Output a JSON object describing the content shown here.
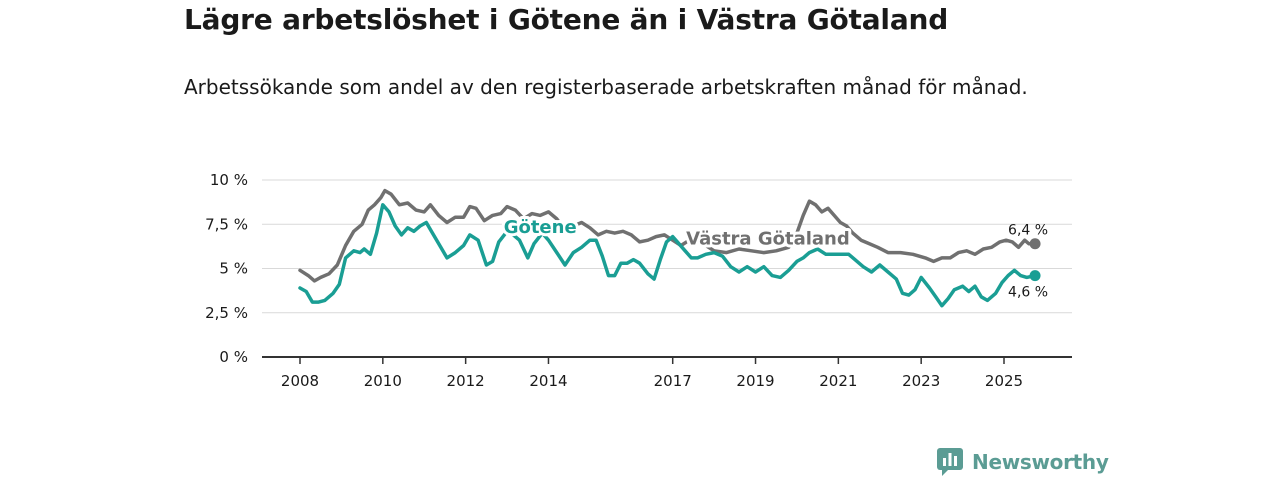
{
  "header": {
    "title": "Lägre arbetslöshet i Götene än i Västra Götaland",
    "subtitle": "Arbetssökande som andel av den registerbaserade arbetskraften månad för månad."
  },
  "brand": {
    "name": "Newsworthy",
    "color": "#5b9c94"
  },
  "chart_data": {
    "type": "line",
    "title": "Lägre arbetslöshet i Götene än i Västra Götaland",
    "subtitle": "Arbetssökande som andel av den registerbaserade arbetskraften månad för månad.",
    "xlabel": "",
    "ylabel": "",
    "ylim": [
      0,
      10
    ],
    "xlim": [
      2007.5,
      2026.25
    ],
    "yticks": [
      0,
      2.5,
      5,
      7.5,
      10
    ],
    "ytick_labels": [
      "0 %",
      "2,5 %",
      "5 %",
      "7,5 %",
      "10 %"
    ],
    "xticks": [
      2008,
      2010,
      2012,
      2014,
      2017,
      2019,
      2021,
      2023,
      2025
    ],
    "xtick_labels": [
      "2008",
      "2010",
      "2012",
      "2014",
      "2017",
      "2019",
      "2021",
      "2023",
      "2025"
    ],
    "grid": true,
    "series": [
      {
        "name": "Västra Götaland",
        "color": "#707070",
        "end_label": "6,4 %",
        "points": [
          [
            2008.0,
            4.9
          ],
          [
            2008.2,
            4.6
          ],
          [
            2008.35,
            4.3
          ],
          [
            2008.5,
            4.5
          ],
          [
            2008.7,
            4.7
          ],
          [
            2008.9,
            5.2
          ],
          [
            2009.1,
            6.3
          ],
          [
            2009.3,
            7.1
          ],
          [
            2009.5,
            7.5
          ],
          [
            2009.65,
            8.3
          ],
          [
            2009.8,
            8.6
          ],
          [
            2009.95,
            9.0
          ],
          [
            2010.05,
            9.4
          ],
          [
            2010.2,
            9.2
          ],
          [
            2010.4,
            8.6
          ],
          [
            2010.6,
            8.7
          ],
          [
            2010.8,
            8.3
          ],
          [
            2011.0,
            8.2
          ],
          [
            2011.15,
            8.6
          ],
          [
            2011.35,
            8.0
          ],
          [
            2011.55,
            7.6
          ],
          [
            2011.75,
            7.9
          ],
          [
            2011.95,
            7.9
          ],
          [
            2012.1,
            8.5
          ],
          [
            2012.25,
            8.4
          ],
          [
            2012.45,
            7.7
          ],
          [
            2012.65,
            8.0
          ],
          [
            2012.85,
            8.1
          ],
          [
            2013.0,
            8.5
          ],
          [
            2013.2,
            8.3
          ],
          [
            2013.4,
            7.8
          ],
          [
            2013.6,
            8.1
          ],
          [
            2013.8,
            8.0
          ],
          [
            2014.0,
            8.2
          ],
          [
            2014.2,
            7.8
          ],
          [
            2014.4,
            7.2
          ],
          [
            2014.6,
            7.4
          ],
          [
            2014.8,
            7.6
          ],
          [
            2015.0,
            7.3
          ],
          [
            2015.2,
            6.9
          ],
          [
            2015.4,
            7.1
          ],
          [
            2015.6,
            7.0
          ],
          [
            2015.8,
            7.1
          ],
          [
            2016.0,
            6.9
          ],
          [
            2016.2,
            6.5
          ],
          [
            2016.4,
            6.6
          ],
          [
            2016.6,
            6.8
          ],
          [
            2016.8,
            6.9
          ],
          [
            2017.0,
            6.6
          ],
          [
            2017.2,
            6.3
          ],
          [
            2017.4,
            6.6
          ],
          [
            2017.6,
            6.5
          ],
          [
            2017.8,
            6.3
          ],
          [
            2018.0,
            6.0
          ],
          [
            2018.3,
            5.9
          ],
          [
            2018.6,
            6.1
          ],
          [
            2018.9,
            6.0
          ],
          [
            2019.2,
            5.9
          ],
          [
            2019.5,
            6.0
          ],
          [
            2019.8,
            6.2
          ],
          [
            2020.0,
            7.0
          ],
          [
            2020.15,
            8.0
          ],
          [
            2020.3,
            8.8
          ],
          [
            2020.45,
            8.6
          ],
          [
            2020.6,
            8.2
          ],
          [
            2020.75,
            8.4
          ],
          [
            2020.9,
            8.0
          ],
          [
            2021.05,
            7.6
          ],
          [
            2021.2,
            7.4
          ],
          [
            2021.35,
            7.0
          ],
          [
            2021.55,
            6.6
          ],
          [
            2021.75,
            6.4
          ],
          [
            2021.95,
            6.2
          ],
          [
            2022.2,
            5.9
          ],
          [
            2022.5,
            5.9
          ],
          [
            2022.8,
            5.8
          ],
          [
            2023.1,
            5.6
          ],
          [
            2023.3,
            5.4
          ],
          [
            2023.5,
            5.6
          ],
          [
            2023.7,
            5.6
          ],
          [
            2023.9,
            5.9
          ],
          [
            2024.1,
            6.0
          ],
          [
            2024.3,
            5.8
          ],
          [
            2024.5,
            6.1
          ],
          [
            2024.7,
            6.2
          ],
          [
            2024.9,
            6.5
          ],
          [
            2025.05,
            6.6
          ],
          [
            2025.2,
            6.5
          ],
          [
            2025.35,
            6.2
          ],
          [
            2025.5,
            6.6
          ],
          [
            2025.6,
            6.4
          ],
          [
            2025.75,
            6.4
          ]
        ]
      },
      {
        "name": "Götene",
        "color": "#1a9e94",
        "end_label": "4,6 %",
        "points": [
          [
            2008.0,
            3.9
          ],
          [
            2008.15,
            3.7
          ],
          [
            2008.3,
            3.1
          ],
          [
            2008.45,
            3.1
          ],
          [
            2008.6,
            3.2
          ],
          [
            2008.8,
            3.6
          ],
          [
            2008.95,
            4.1
          ],
          [
            2009.1,
            5.6
          ],
          [
            2009.3,
            6.0
          ],
          [
            2009.45,
            5.9
          ],
          [
            2009.55,
            6.1
          ],
          [
            2009.7,
            5.8
          ],
          [
            2009.85,
            7.0
          ],
          [
            2010.0,
            8.6
          ],
          [
            2010.15,
            8.2
          ],
          [
            2010.3,
            7.4
          ],
          [
            2010.45,
            6.9
          ],
          [
            2010.6,
            7.3
          ],
          [
            2010.75,
            7.1
          ],
          [
            2010.9,
            7.4
          ],
          [
            2011.05,
            7.6
          ],
          [
            2011.2,
            7.0
          ],
          [
            2011.4,
            6.2
          ],
          [
            2011.55,
            5.6
          ],
          [
            2011.75,
            5.9
          ],
          [
            2011.95,
            6.3
          ],
          [
            2012.1,
            6.9
          ],
          [
            2012.3,
            6.6
          ],
          [
            2012.5,
            5.2
          ],
          [
            2012.65,
            5.4
          ],
          [
            2012.8,
            6.5
          ],
          [
            2013.0,
            7.1
          ],
          [
            2013.15,
            6.9
          ],
          [
            2013.3,
            6.6
          ],
          [
            2013.5,
            5.6
          ],
          [
            2013.65,
            6.4
          ],
          [
            2013.85,
            7.0
          ],
          [
            2014.0,
            6.6
          ],
          [
            2014.2,
            5.9
          ],
          [
            2014.4,
            5.2
          ],
          [
            2014.6,
            5.9
          ],
          [
            2014.8,
            6.2
          ],
          [
            2015.0,
            6.6
          ],
          [
            2015.15,
            6.6
          ],
          [
            2015.3,
            5.7
          ],
          [
            2015.45,
            4.6
          ],
          [
            2015.6,
            4.6
          ],
          [
            2015.75,
            5.3
          ],
          [
            2015.9,
            5.3
          ],
          [
            2016.05,
            5.5
          ],
          [
            2016.2,
            5.3
          ],
          [
            2016.4,
            4.7
          ],
          [
            2016.55,
            4.4
          ],
          [
            2016.7,
            5.5
          ],
          [
            2016.85,
            6.5
          ],
          [
            2017.0,
            6.8
          ],
          [
            2017.15,
            6.4
          ],
          [
            2017.3,
            6.0
          ],
          [
            2017.45,
            5.6
          ],
          [
            2017.6,
            5.6
          ],
          [
            2017.8,
            5.8
          ],
          [
            2018.0,
            5.9
          ],
          [
            2018.2,
            5.7
          ],
          [
            2018.4,
            5.1
          ],
          [
            2018.6,
            4.8
          ],
          [
            2018.8,
            5.1
          ],
          [
            2019.0,
            4.8
          ],
          [
            2019.2,
            5.1
          ],
          [
            2019.4,
            4.6
          ],
          [
            2019.6,
            4.5
          ],
          [
            2019.8,
            4.9
          ],
          [
            2020.0,
            5.4
          ],
          [
            2020.15,
            5.6
          ],
          [
            2020.3,
            5.9
          ],
          [
            2020.5,
            6.1
          ],
          [
            2020.7,
            5.8
          ],
          [
            2020.9,
            5.8
          ],
          [
            2021.1,
            5.8
          ],
          [
            2021.25,
            5.8
          ],
          [
            2021.4,
            5.5
          ],
          [
            2021.6,
            5.1
          ],
          [
            2021.8,
            4.8
          ],
          [
            2022.0,
            5.2
          ],
          [
            2022.2,
            4.8
          ],
          [
            2022.4,
            4.4
          ],
          [
            2022.55,
            3.6
          ],
          [
            2022.7,
            3.5
          ],
          [
            2022.85,
            3.8
          ],
          [
            2023.0,
            4.5
          ],
          [
            2023.2,
            3.9
          ],
          [
            2023.35,
            3.4
          ],
          [
            2023.5,
            2.9
          ],
          [
            2023.65,
            3.3
          ],
          [
            2023.8,
            3.8
          ],
          [
            2024.0,
            4.0
          ],
          [
            2024.15,
            3.7
          ],
          [
            2024.3,
            4.0
          ],
          [
            2024.45,
            3.4
          ],
          [
            2024.6,
            3.2
          ],
          [
            2024.8,
            3.6
          ],
          [
            2024.95,
            4.2
          ],
          [
            2025.1,
            4.6
          ],
          [
            2025.25,
            4.9
          ],
          [
            2025.4,
            4.6
          ],
          [
            2025.55,
            4.5
          ],
          [
            2025.75,
            4.6
          ]
        ]
      }
    ],
    "annotations": [
      {
        "series": "Götene",
        "text": "Götene",
        "at_x": 2013.8,
        "at_y": 7.0
      },
      {
        "series": "Västra Götaland",
        "text": "Västra Götaland",
        "at_x": 2019.3,
        "at_y": 6.35
      }
    ]
  }
}
